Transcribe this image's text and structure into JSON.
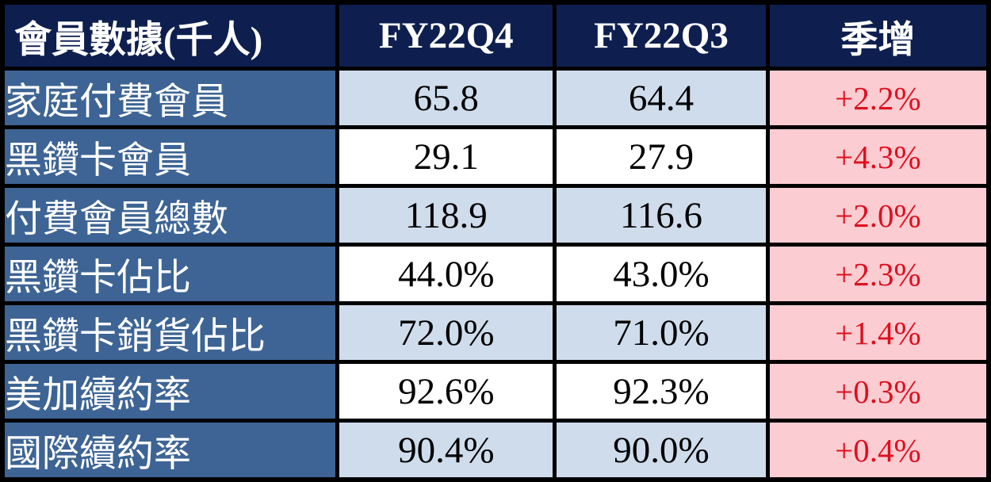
{
  "chart_data": {
    "type": "table",
    "title": "會員數據(千人)",
    "columns": [
      "會員數據(千人)",
      "FY22Q4",
      "FY22Q3",
      "季增"
    ],
    "rows": [
      [
        "家庭付費會員",
        "65.8",
        "64.4",
        "+2.2%"
      ],
      [
        "黑鑽卡會員",
        "29.1",
        "27.9",
        "+4.3%"
      ],
      [
        "付費會員總數",
        "118.9",
        "116.6",
        "+2.0%"
      ],
      [
        "黑鑽卡佔比",
        "44.0%",
        "43.0%",
        "+2.3%"
      ],
      [
        "黑鑽卡銷貨佔比",
        "72.0%",
        "71.0%",
        "+1.4%"
      ],
      [
        "美加續約率",
        "92.6%",
        "92.3%",
        "+0.3%"
      ],
      [
        "國際續約率",
        "90.4%",
        "90.0%",
        "+0.4%"
      ]
    ]
  },
  "colors": {
    "header_bg": "#0e1f4f",
    "header_text": "#ffffff",
    "label_bg": "#3d6494",
    "label_text": "#ffffff",
    "row_alt_bg": "#cfdcec",
    "row_plain_bg": "#ffffff",
    "change_bg": "#fbccd1",
    "change_text": "#de0f1e",
    "border_color": "#000000"
  }
}
